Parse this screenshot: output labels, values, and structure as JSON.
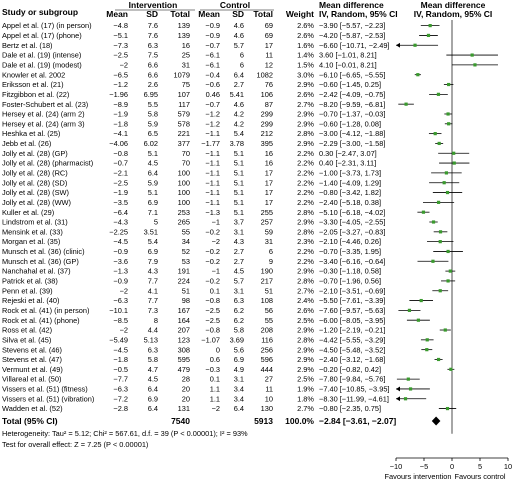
{
  "header": {
    "study_label": "Study or subgroup",
    "intervention_label": "Intervention",
    "control_label": "Control",
    "md_label_left": "Mean difference",
    "md_label_right": "Mean difference",
    "method_left": "IV, Random, 95% CI",
    "method_right": "IV, Random, 95% CI",
    "col_mean": "Mean",
    "col_sd": "SD",
    "col_total": "Total",
    "col_weight": "Weight"
  },
  "footer": {
    "total_label": "Total (95% CI)",
    "total_int_n": "7540",
    "total_ctrl_n": "5913",
    "total_weight": "100.0%",
    "total_ci_text": "−2.84 [−3.61, −2.07]",
    "heterogeneity": "Heterogeneity: Tau² = 5.12; Chi² = 567.61, d.f. = 39 (P < 0.00001); I² = 93%",
    "overall_effect": "Test for overall effect: Z = 7.25 (P < 0.00001)",
    "favours_left": "Favours intervention",
    "favours_right": "Favours control"
  },
  "chart_data": {
    "type": "forest",
    "xlim": [
      -10,
      10
    ],
    "xticks": [
      "−10",
      "−5",
      "0",
      "5",
      "10"
    ],
    "xtick_values": [
      -10,
      -5,
      0,
      5,
      10
    ],
    "pooled": {
      "md": -2.84,
      "lo": -3.61,
      "hi": -2.07
    },
    "studies": [
      {
        "name": "Appel et al. (17) (in person)",
        "im": "−4.8",
        "isd": "7.6",
        "in": "139",
        "cm": "−0.9",
        "csd": "4.6",
        "cn": "69",
        "w": "2.6%",
        "ci": "−3.90 [−5.57, −2.23]",
        "md": -3.9,
        "lo": -5.57,
        "hi": -2.23
      },
      {
        "name": "Appel et al. (17) (phone)",
        "im": "−5.1",
        "isd": "7.6",
        "in": "139",
        "cm": "−0.9",
        "csd": "4.6",
        "cn": "69",
        "w": "2.6%",
        "ci": "−4.20 [−5.87, −2.53]",
        "md": -4.2,
        "lo": -5.87,
        "hi": -2.53
      },
      {
        "name": "Bertz et al. (18)",
        "im": "−7.3",
        "isd": "6.3",
        "in": "16",
        "cm": "−0.7",
        "csd": "5.7",
        "cn": "17",
        "w": "1.6%",
        "ci": "−6.60 [−10.71, −2.49]",
        "md": -6.6,
        "lo": -10.71,
        "hi": -2.49
      },
      {
        "name": "Dale et al. (19) (intense)",
        "im": "−2.5",
        "isd": "7.5",
        "in": "25",
        "cm": "−6.1",
        "csd": "6",
        "cn": "11",
        "w": "1.4%",
        "ci": "3.60 [−1.01, 8.21]",
        "md": 3.6,
        "lo": -1.01,
        "hi": 8.21
      },
      {
        "name": "Dale et al. (19) (modest)",
        "im": "−2",
        "isd": "6.6",
        "in": "31",
        "cm": "−6.1",
        "csd": "6",
        "cn": "12",
        "w": "1.5%",
        "ci": "4.10 [−0.01, 8.21]",
        "md": 4.1,
        "lo": -0.01,
        "hi": 8.21
      },
      {
        "name": "Knowler et al. 2002",
        "im": "−6.5",
        "isd": "6.6",
        "in": "1079",
        "cm": "−0.4",
        "csd": "6.4",
        "cn": "1082",
        "w": "3.0%",
        "ci": "−6.10 [−6.65, −5.55]",
        "md": -6.1,
        "lo": -6.65,
        "hi": -5.55
      },
      {
        "name": "Eriksson et al. (21)",
        "im": "−1.2",
        "isd": "2.6",
        "in": "75",
        "cm": "−0.6",
        "csd": "2.7",
        "cn": "76",
        "w": "2.9%",
        "ci": "−0.60 [−1.45, 0.25]",
        "md": -0.6,
        "lo": -1.45,
        "hi": 0.25
      },
      {
        "name": "Fitzgibbon et al. (22)",
        "im": "−1.96",
        "isd": "6.95",
        "in": "107",
        "cm": "0.46",
        "csd": "5.41",
        "cn": "106",
        "w": "2.6%",
        "ci": "−2.42 [−4.09, −0.75]",
        "md": -2.42,
        "lo": -4.09,
        "hi": -0.75
      },
      {
        "name": "Foster-Schubert et al. (23)",
        "im": "−8.9",
        "isd": "5.5",
        "in": "117",
        "cm": "−0.7",
        "csd": "4.6",
        "cn": "87",
        "w": "2.7%",
        "ci": "−8.20 [−9.59, −6.81]",
        "md": -8.2,
        "lo": -9.59,
        "hi": -6.81
      },
      {
        "name": "Hersey et al. (24) (arm 2)",
        "im": "−1.9",
        "isd": "5.8",
        "in": "579",
        "cm": "−1.2",
        "csd": "4.2",
        "cn": "299",
        "w": "2.9%",
        "ci": "−0.70 [−1.37, −0.03]",
        "md": -0.7,
        "lo": -1.37,
        "hi": -0.03
      },
      {
        "name": "Hersey et al. (24) (arm 3)",
        "im": "−1.8",
        "isd": "5.9",
        "in": "578",
        "cm": "−1.2",
        "csd": "4.2",
        "cn": "299",
        "w": "2.9%",
        "ci": "−0.60 [−1.28, 0.08]",
        "md": -0.6,
        "lo": -1.28,
        "hi": 0.08
      },
      {
        "name": "Heshka et al. (25)",
        "im": "−4.1",
        "isd": "6.5",
        "in": "221",
        "cm": "−1.1",
        "csd": "5.4",
        "cn": "212",
        "w": "2.8%",
        "ci": "−3.00 [−4.12, −1.88]",
        "md": -3.0,
        "lo": -4.12,
        "hi": -1.88
      },
      {
        "name": "Jebb et al. (26)",
        "im": "−4.06",
        "isd": "6.02",
        "in": "377",
        "cm": "−1.77",
        "csd": "3.78",
        "cn": "395",
        "w": "2.9%",
        "ci": "−2.29 [−3.00, −1.58]",
        "md": -2.29,
        "lo": -3.0,
        "hi": -1.58
      },
      {
        "name": "Jolly et al. (28) (GP)",
        "im": "−0.8",
        "isd": "5.1",
        "in": "70",
        "cm": "−1.1",
        "csd": "5.1",
        "cn": "16",
        "w": "2.2%",
        "ci": "0.30 [−2.47, 3.07]",
        "md": 0.3,
        "lo": -2.47,
        "hi": 3.07
      },
      {
        "name": "Jolly et al. (28) (pharmacist)",
        "im": "−0.7",
        "isd": "4.5",
        "in": "70",
        "cm": "−1.1",
        "csd": "5.1",
        "cn": "16",
        "w": "2.2%",
        "ci": "0.40 [−2.31, 3.11]",
        "md": 0.4,
        "lo": -2.31,
        "hi": 3.11
      },
      {
        "name": "Jolly et al. (28) (RC)",
        "im": "−2.1",
        "isd": "6.4",
        "in": "100",
        "cm": "−1.1",
        "csd": "5.1",
        "cn": "17",
        "w": "2.2%",
        "ci": "−1.00 [−3.73, 1.73]",
        "md": -1.0,
        "lo": -3.73,
        "hi": 1.73
      },
      {
        "name": "Jolly et al. (28) (SD)",
        "im": "−2.5",
        "isd": "5.9",
        "in": "100",
        "cm": "−1.1",
        "csd": "5.1",
        "cn": "17",
        "w": "2.2%",
        "ci": "−1.40 [−4.09, 1.29]",
        "md": -1.4,
        "lo": -4.09,
        "hi": 1.29
      },
      {
        "name": "Jolly et al. (28) (SW)",
        "im": "−1.9",
        "isd": "5.1",
        "in": "100",
        "cm": "−1.1",
        "csd": "5.1",
        "cn": "17",
        "w": "2.2%",
        "ci": "−0.80 [−3.42, 1.82]",
        "md": -0.8,
        "lo": -3.42,
        "hi": 1.82
      },
      {
        "name": "Jolly et al. (28) (WW)",
        "im": "−3.5",
        "isd": "6.9",
        "in": "100",
        "cm": "−1.1",
        "csd": "5.1",
        "cn": "17",
        "w": "2.2%",
        "ci": "−2.40 [−5.18, 0.38]",
        "md": -2.4,
        "lo": -5.18,
        "hi": 0.38
      },
      {
        "name": "Kuller et al. (29)",
        "im": "−6.4",
        "isd": "7.1",
        "in": "253",
        "cm": "−1.3",
        "csd": "5.1",
        "cn": "255",
        "w": "2.8%",
        "ci": "−5.10 [−6.18, −4.02]",
        "md": -5.1,
        "lo": -6.18,
        "hi": -4.02
      },
      {
        "name": "Lindstrom et al. (31)",
        "im": "−4.3",
        "isd": "5",
        "in": "265",
        "cm": "−1",
        "csd": "3.7",
        "cn": "257",
        "w": "2.9%",
        "ci": "−3.30 [−4.05, −2.55]",
        "md": -3.3,
        "lo": -4.05,
        "hi": -2.55
      },
      {
        "name": "Mensink et al. (33)",
        "im": "−2.25",
        "isd": "3.51",
        "in": "55",
        "cm": "−0.2",
        "csd": "3.1",
        "cn": "59",
        "w": "2.8%",
        "ci": "−2.05 [−3.27, −0.83]",
        "md": -2.05,
        "lo": -3.27,
        "hi": -0.83
      },
      {
        "name": "Morgan et al. (35)",
        "im": "−4.5",
        "isd": "5.4",
        "in": "34",
        "cm": "−2",
        "csd": "4.3",
        "cn": "31",
        "w": "2.3%",
        "ci": "−2.10 [−4.46, 0.26]",
        "md": -2.1,
        "lo": -4.46,
        "hi": 0.26
      },
      {
        "name": "Munsch et al. (36) (clinic)",
        "im": "−0.9",
        "isd": "6.9",
        "in": "52",
        "cm": "−0.2",
        "csd": "2.7",
        "cn": "6",
        "w": "2.2%",
        "ci": "−0.70 [−3.35, 1.95]",
        "md": -0.7,
        "lo": -3.35,
        "hi": 1.95
      },
      {
        "name": "Munsch et al. (36) (GP)",
        "im": "−3.6",
        "isd": "7.9",
        "in": "53",
        "cm": "−0.2",
        "csd": "2.7",
        "cn": "9",
        "w": "2.2%",
        "ci": "−3.40 [−6.16, −0.64]",
        "md": -3.4,
        "lo": -6.16,
        "hi": -0.64
      },
      {
        "name": "Nanchahal et al. (37)",
        "im": "−1.3",
        "isd": "4.3",
        "in": "191",
        "cm": "−1",
        "csd": "4.5",
        "cn": "190",
        "w": "2.9%",
        "ci": "−0.30 [−1.18, 0.58]",
        "md": -0.3,
        "lo": -1.18,
        "hi": 0.58
      },
      {
        "name": "Patrick et al. (38)",
        "im": "−0.9",
        "isd": "7.7",
        "in": "224",
        "cm": "−0.2",
        "csd": "5.7",
        "cn": "217",
        "w": "2.8%",
        "ci": "−0.70 [−1.96, 0.56]",
        "md": -0.7,
        "lo": -1.96,
        "hi": 0.56
      },
      {
        "name": "Penn et al. (39)",
        "im": "−2",
        "isd": "4.1",
        "in": "51",
        "cm": "0.1",
        "csd": "3.1",
        "cn": "51",
        "w": "2.7%",
        "ci": "−2.10 [−3.51, −0.69]",
        "md": -2.1,
        "lo": -3.51,
        "hi": -0.69
      },
      {
        "name": "Rejeski et al. (40)",
        "im": "−6.3",
        "isd": "7.7",
        "in": "98",
        "cm": "−0.8",
        "csd": "6.3",
        "cn": "108",
        "w": "2.4%",
        "ci": "−5.50 [−7.61, −3.39]",
        "md": -5.5,
        "lo": -7.61,
        "hi": -3.39
      },
      {
        "name": "Rock et al. (41) (in person)",
        "im": "−10.1",
        "isd": "7.3",
        "in": "167",
        "cm": "−2.5",
        "csd": "6.2",
        "cn": "56",
        "w": "2.6%",
        "ci": "−7.60 [−9.57, −5.63]",
        "md": -7.6,
        "lo": -9.57,
        "hi": -5.63
      },
      {
        "name": "Rock et al. (41) (phone)",
        "im": "−8.5",
        "isd": "8",
        "in": "164",
        "cm": "−2.5",
        "csd": "6.2",
        "cn": "55",
        "w": "2.5%",
        "ci": "−6.00 [−8.05, −3.95]",
        "md": -6.0,
        "lo": -8.05,
        "hi": -3.95
      },
      {
        "name": "Ross et al. (42)",
        "im": "−2",
        "isd": "4.4",
        "in": "207",
        "cm": "−0.8",
        "csd": "5.8",
        "cn": "208",
        "w": "2.9%",
        "ci": "−1.20 [−2.19, −0.21]",
        "md": -1.2,
        "lo": -2.19,
        "hi": -0.21
      },
      {
        "name": "Silva et al. (45)",
        "im": "−5.49",
        "isd": "5.13",
        "in": "123",
        "cm": "−1.07",
        "csd": "3.69",
        "cn": "116",
        "w": "2.8%",
        "ci": "−4.42 [−5.55, −3.29]",
        "md": -4.42,
        "lo": -5.55,
        "hi": -3.29
      },
      {
        "name": "Stevens et al. (46)",
        "im": "−4.5",
        "isd": "6.3",
        "in": "308",
        "cm": "0",
        "csd": "5.6",
        "cn": "256",
        "w": "2.9%",
        "ci": "−4.50 [−5.48, −3.52]",
        "md": -4.5,
        "lo": -5.48,
        "hi": -3.52
      },
      {
        "name": "Stevens et al. (47)",
        "im": "−1.8",
        "isd": "5.8",
        "in": "595",
        "cm": "0.6",
        "csd": "6.9",
        "cn": "596",
        "w": "2.9%",
        "ci": "−2.40 [−3.12, −1.68]",
        "md": -2.4,
        "lo": -3.12,
        "hi": -1.68
      },
      {
        "name": "Vermunt et al. (49)",
        "im": "−0.5",
        "isd": "4.7",
        "in": "479",
        "cm": "−0.3",
        "csd": "4.9",
        "cn": "444",
        "w": "2.9%",
        "ci": "−0.20 [−0.82, 0.42]",
        "md": -0.2,
        "lo": -0.82,
        "hi": 0.42
      },
      {
        "name": "Villareal et al. (50)",
        "im": "−7.7",
        "isd": "4.5",
        "in": "28",
        "cm": "0.1",
        "csd": "3.1",
        "cn": "27",
        "w": "2.5%",
        "ci": "−7.80 [−9.84, −5.76]",
        "md": -7.8,
        "lo": -9.84,
        "hi": -5.76
      },
      {
        "name": "Vissers et al. (51) (fitness)",
        "im": "−6.3",
        "isd": "6.4",
        "in": "20",
        "cm": "1.1",
        "csd": "3.4",
        "cn": "11",
        "w": "1.9%",
        "ci": "−7.40 [−10.85, −3.95]",
        "md": -7.4,
        "lo": -10.85,
        "hi": -3.95
      },
      {
        "name": "Vissers et al. (51) (vibration)",
        "im": "−7.2",
        "isd": "6.9",
        "in": "20",
        "cm": "1.1",
        "csd": "3.4",
        "cn": "10",
        "w": "1.8%",
        "ci": "−8.30 [−11.99, −4.61]",
        "md": -8.3,
        "lo": -11.99,
        "hi": -4.61
      },
      {
        "name": "Wadden et al. (52)",
        "im": "−2.8",
        "isd": "6.4",
        "in": "131",
        "cm": "−2",
        "csd": "6.4",
        "cn": "130",
        "w": "2.7%",
        "ci": "−0.80 [−2.35, 0.75]",
        "md": -0.8,
        "lo": -2.35,
        "hi": 0.75
      }
    ]
  }
}
